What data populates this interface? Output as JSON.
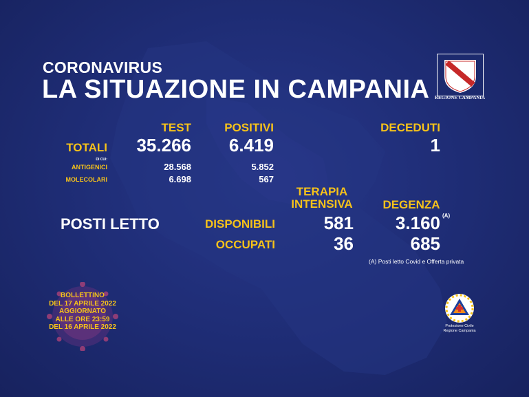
{
  "header": {
    "overtitle": "CORONAVIRUS",
    "title": "LA SITUAZIONE IN CAMPANIA"
  },
  "logo": {
    "text": "REGIONE CAMPANIA"
  },
  "columns": {
    "test": "TEST",
    "positivi": "POSITIVI",
    "deceduti": "DECEDUTI"
  },
  "totali": {
    "label": "TOTALI",
    "test": "35.266",
    "positivi": "6.419",
    "deceduti": "1"
  },
  "di_cui": "DI CUI:",
  "antigenici": {
    "label": "ANTIGENICI",
    "test": "28.568",
    "positivi": "5.852"
  },
  "molecolari": {
    "label": "MOLECOLARI",
    "test": "6.698",
    "positivi": "567"
  },
  "posti_letto": {
    "label": "POSTI LETTO",
    "terapia_line1": "TERAPIA",
    "terapia_line2": "INTENSIVA",
    "degenza": "DEGENZA",
    "disponibili": {
      "label": "DISPONIBILI",
      "terapia": "581",
      "degenza": "3.160"
    },
    "occupati": {
      "label": "OCCUPATI",
      "terapia": "36",
      "degenza": "685"
    },
    "note_marker": "(A)",
    "note": "(A) Posti letto Covid e Offerta privata"
  },
  "bollettino": {
    "line1": "BOLLETTINO",
    "line2": "DEL 17 APRILE 2022",
    "line3": "AGGIORNATO",
    "line4": "ALLE ORE 23:59",
    "line5": "DEL 16 APRILE 2022"
  },
  "protezione_civile": {
    "line1": "Protezione Civile",
    "line2": "Regione Campania"
  },
  "colors": {
    "background": "#1e2c74",
    "accent": "#f6c21a",
    "text": "#ffffff"
  }
}
